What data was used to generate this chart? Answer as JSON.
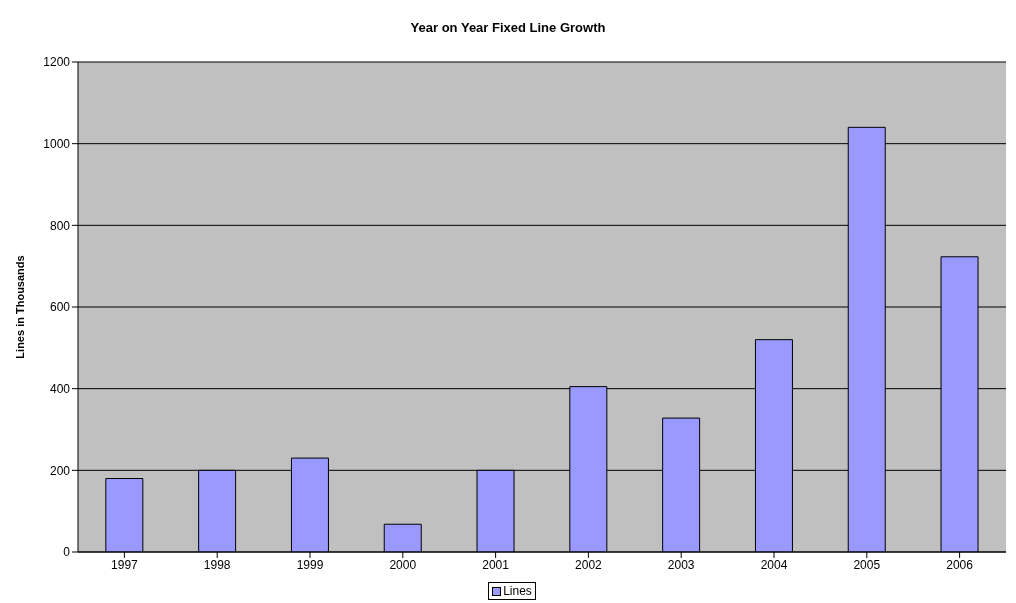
{
  "chart_data": {
    "type": "bar",
    "title": "Year on Year Fixed Line Growth",
    "ylabel": "Lines in Thousands",
    "categories": [
      "1997",
      "1998",
      "1999",
      "2000",
      "2001",
      "2002",
      "2003",
      "2004",
      "2005",
      "2006"
    ],
    "series": [
      {
        "name": "Lines",
        "color": "#9999ff",
        "values": [
          180,
          200,
          230,
          68,
          200,
          405,
          328,
          520,
          1040,
          723
        ]
      }
    ],
    "ylim": [
      0,
      1200
    ],
    "yticks": [
      0,
      200,
      400,
      600,
      800,
      1000,
      1200
    ],
    "grid": "y",
    "legend": "bottom"
  }
}
